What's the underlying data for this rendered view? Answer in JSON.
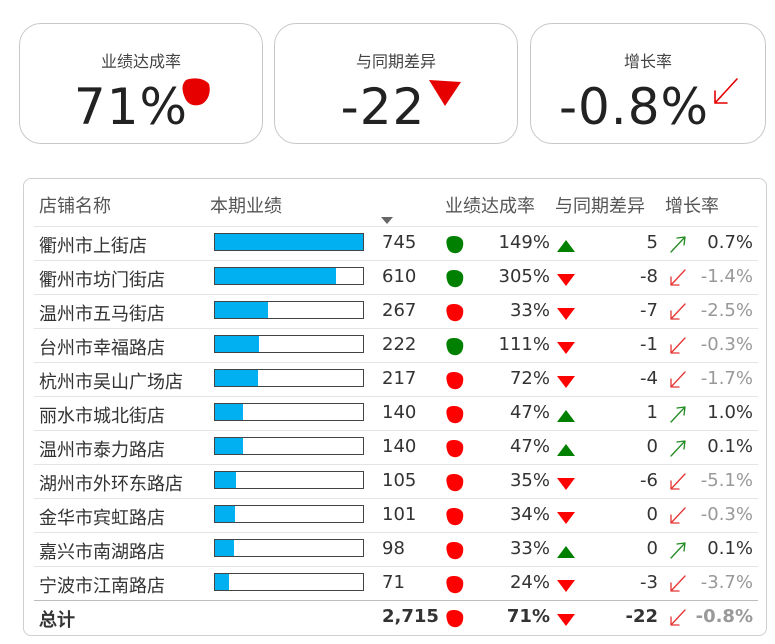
{
  "kpis": [
    {
      "title": "业绩达成率",
      "value": "71%",
      "indicator": "red-blob-icon",
      "color": "#e60000"
    },
    {
      "title": "与同期差异",
      "value": "-22",
      "indicator": "red-down-triangle-icon",
      "color": "#e60000"
    },
    {
      "title": "增长率",
      "value": "-0.8%",
      "indicator": "red-down-arrow-icon",
      "color": "#e60000"
    }
  ],
  "table": {
    "headers": {
      "name": "店铺名称",
      "current": "本期业绩",
      "rate": "业绩达成率",
      "diff": "与同期差异",
      "growth": "增长率"
    },
    "bar_color": "#00b0f0",
    "bar_max": 745,
    "rows": [
      {
        "name": "衢州市上街店",
        "value": "745",
        "num": 745,
        "rate": "149%",
        "rate_status": "good",
        "diff": "5",
        "diff_dir": "up",
        "growth": "0.7%",
        "growth_dir": "up"
      },
      {
        "name": "衢州市坊门街店",
        "value": "610",
        "num": 610,
        "rate": "305%",
        "rate_status": "good",
        "diff": "-8",
        "diff_dir": "down",
        "growth": "-1.4%",
        "growth_dir": "down"
      },
      {
        "name": "温州市五马街店",
        "value": "267",
        "num": 267,
        "rate": "33%",
        "rate_status": "bad",
        "diff": "-7",
        "diff_dir": "down",
        "growth": "-2.5%",
        "growth_dir": "down"
      },
      {
        "name": "台州市幸福路店",
        "value": "222",
        "num": 222,
        "rate": "111%",
        "rate_status": "good",
        "diff": "-1",
        "diff_dir": "down",
        "growth": "-0.3%",
        "growth_dir": "down"
      },
      {
        "name": "杭州市吴山广场店",
        "value": "217",
        "num": 217,
        "rate": "72%",
        "rate_status": "bad",
        "diff": "-4",
        "diff_dir": "down",
        "growth": "-1.7%",
        "growth_dir": "down"
      },
      {
        "name": "丽水市城北街店",
        "value": "140",
        "num": 140,
        "rate": "47%",
        "rate_status": "bad",
        "diff": "1",
        "diff_dir": "up",
        "growth": "1.0%",
        "growth_dir": "up"
      },
      {
        "name": "温州市泰力路店",
        "value": "140",
        "num": 140,
        "rate": "47%",
        "rate_status": "bad",
        "diff": "0",
        "diff_dir": "up",
        "growth": "0.1%",
        "growth_dir": "up"
      },
      {
        "name": "湖州市外环东路店",
        "value": "105",
        "num": 105,
        "rate": "35%",
        "rate_status": "bad",
        "diff": "-6",
        "diff_dir": "down",
        "growth": "-5.1%",
        "growth_dir": "down"
      },
      {
        "name": "金华市宾虹路店",
        "value": "101",
        "num": 101,
        "rate": "34%",
        "rate_status": "bad",
        "diff": "0",
        "diff_dir": "down",
        "growth": "-0.3%",
        "growth_dir": "down"
      },
      {
        "name": "嘉兴市南湖路店",
        "value": "98",
        "num": 98,
        "rate": "33%",
        "rate_status": "bad",
        "diff": "0",
        "diff_dir": "up",
        "growth": "0.1%",
        "growth_dir": "up"
      },
      {
        "name": "宁波市江南路店",
        "value": "71",
        "num": 71,
        "rate": "24%",
        "rate_status": "bad",
        "diff": "-3",
        "diff_dir": "down",
        "growth": "-3.7%",
        "growth_dir": "down"
      }
    ],
    "total": {
      "name": "总计",
      "value": "2,715",
      "rate": "71%",
      "rate_status": "bad",
      "diff": "-22",
      "diff_dir": "down",
      "growth": "-0.8%",
      "growth_dir": "down"
    }
  },
  "colors": {
    "good": "#008000",
    "bad": "#ff0000",
    "up_tri": "#008000",
    "down_tri": "#ff0000"
  }
}
